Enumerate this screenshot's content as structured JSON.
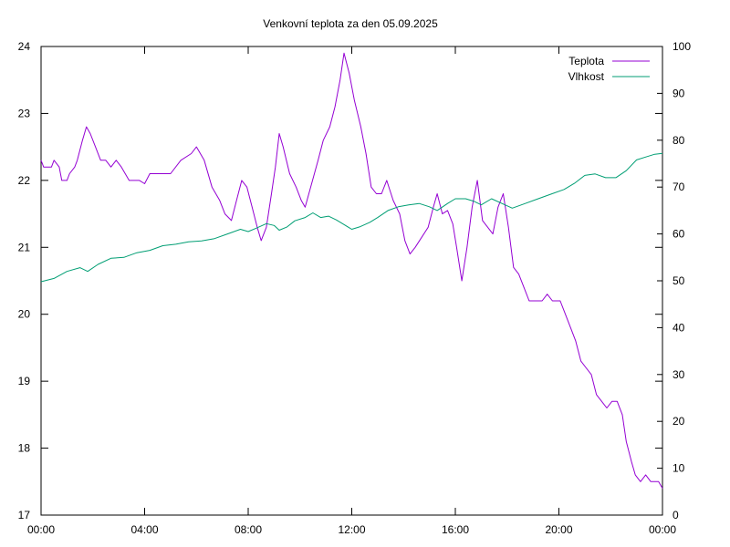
{
  "chart_data": {
    "type": "line",
    "title": "Venkovní teplota za den 05.09.2025",
    "xlabel": "",
    "ylabel": "",
    "y2label": "",
    "x_ticks": [
      "00:00",
      "04:00",
      "08:00",
      "12:00",
      "16:00",
      "20:00",
      "00:00"
    ],
    "xlim_hours": [
      0,
      24
    ],
    "ylim": [
      17,
      24
    ],
    "y_ticks": [
      17,
      18,
      19,
      20,
      21,
      22,
      23,
      24
    ],
    "y2lim": [
      0,
      100
    ],
    "y2_ticks": [
      0,
      10,
      20,
      30,
      40,
      50,
      60,
      70,
      80,
      90,
      100
    ],
    "grid": false,
    "legend_position": "top-right",
    "series": [
      {
        "name": "Teplota",
        "axis": "left",
        "color": "#9400d3",
        "points": [
          [
            0.0,
            22.3
          ],
          [
            0.1,
            22.2
          ],
          [
            0.4,
            22.2
          ],
          [
            0.5,
            22.3
          ],
          [
            0.7,
            22.2
          ],
          [
            0.8,
            22.0
          ],
          [
            1.0,
            22.0
          ],
          [
            1.1,
            22.1
          ],
          [
            1.3,
            22.2
          ],
          [
            1.4,
            22.3
          ],
          [
            1.6,
            22.6
          ],
          [
            1.75,
            22.8
          ],
          [
            1.9,
            22.7
          ],
          [
            2.1,
            22.5
          ],
          [
            2.3,
            22.3
          ],
          [
            2.5,
            22.3
          ],
          [
            2.7,
            22.2
          ],
          [
            2.9,
            22.3
          ],
          [
            3.1,
            22.2
          ],
          [
            3.4,
            22.0
          ],
          [
            3.8,
            22.0
          ],
          [
            4.0,
            21.95
          ],
          [
            4.2,
            22.1
          ],
          [
            4.7,
            22.1
          ],
          [
            5.0,
            22.1
          ],
          [
            5.4,
            22.3
          ],
          [
            5.8,
            22.4
          ],
          [
            6.0,
            22.5
          ],
          [
            6.3,
            22.3
          ],
          [
            6.6,
            21.9
          ],
          [
            6.9,
            21.7
          ],
          [
            7.1,
            21.5
          ],
          [
            7.35,
            21.4
          ],
          [
            7.55,
            21.7
          ],
          [
            7.75,
            22.0
          ],
          [
            7.95,
            21.9
          ],
          [
            8.15,
            21.6
          ],
          [
            8.35,
            21.3
          ],
          [
            8.5,
            21.1
          ],
          [
            8.7,
            21.3
          ],
          [
            8.9,
            21.8
          ],
          [
            9.05,
            22.2
          ],
          [
            9.2,
            22.7
          ],
          [
            9.35,
            22.5
          ],
          [
            9.6,
            22.1
          ],
          [
            9.85,
            21.9
          ],
          [
            10.05,
            21.7
          ],
          [
            10.2,
            21.6
          ],
          [
            10.45,
            21.95
          ],
          [
            10.7,
            22.3
          ],
          [
            10.9,
            22.6
          ],
          [
            11.15,
            22.8
          ],
          [
            11.35,
            23.1
          ],
          [
            11.55,
            23.5
          ],
          [
            11.7,
            23.9
          ],
          [
            11.9,
            23.6
          ],
          [
            12.1,
            23.2
          ],
          [
            12.35,
            22.8
          ],
          [
            12.55,
            22.4
          ],
          [
            12.75,
            21.9
          ],
          [
            12.95,
            21.8
          ],
          [
            13.15,
            21.8
          ],
          [
            13.35,
            22.0
          ],
          [
            13.6,
            21.7
          ],
          [
            13.85,
            21.5
          ],
          [
            14.05,
            21.1
          ],
          [
            14.25,
            20.9
          ],
          [
            14.45,
            21.0
          ],
          [
            14.7,
            21.15
          ],
          [
            14.95,
            21.3
          ],
          [
            15.15,
            21.6
          ],
          [
            15.3,
            21.8
          ],
          [
            15.5,
            21.5
          ],
          [
            15.7,
            21.55
          ],
          [
            15.9,
            21.35
          ],
          [
            16.05,
            21.0
          ],
          [
            16.25,
            20.5
          ],
          [
            16.45,
            21.0
          ],
          [
            16.65,
            21.6
          ],
          [
            16.85,
            22.0
          ],
          [
            17.05,
            21.4
          ],
          [
            17.25,
            21.3
          ],
          [
            17.45,
            21.2
          ],
          [
            17.65,
            21.6
          ],
          [
            17.85,
            21.8
          ],
          [
            18.05,
            21.3
          ],
          [
            18.25,
            20.7
          ],
          [
            18.45,
            20.6
          ],
          [
            18.65,
            20.4
          ],
          [
            18.85,
            20.2
          ],
          [
            19.05,
            20.2
          ],
          [
            19.35,
            20.2
          ],
          [
            19.55,
            20.3
          ],
          [
            19.75,
            20.2
          ],
          [
            20.05,
            20.2
          ],
          [
            20.25,
            20.0
          ],
          [
            20.45,
            19.8
          ],
          [
            20.65,
            19.6
          ],
          [
            20.85,
            19.3
          ],
          [
            21.05,
            19.2
          ],
          [
            21.25,
            19.1
          ],
          [
            21.45,
            18.8
          ],
          [
            21.65,
            18.7
          ],
          [
            21.85,
            18.6
          ],
          [
            22.05,
            18.7
          ],
          [
            22.25,
            18.7
          ],
          [
            22.45,
            18.5
          ],
          [
            22.6,
            18.1
          ],
          [
            22.8,
            17.8
          ],
          [
            22.95,
            17.6
          ],
          [
            23.15,
            17.5
          ],
          [
            23.35,
            17.6
          ],
          [
            23.55,
            17.5
          ],
          [
            23.75,
            17.5
          ],
          [
            23.85,
            17.5
          ],
          [
            24.0,
            17.4
          ]
        ]
      },
      {
        "name": "Vlhkost",
        "axis": "right",
        "color": "#009e73",
        "points": [
          [
            0.0,
            49.8
          ],
          [
            0.5,
            50.5
          ],
          [
            1.0,
            52.0
          ],
          [
            1.5,
            52.8
          ],
          [
            1.8,
            52.0
          ],
          [
            2.2,
            53.5
          ],
          [
            2.7,
            54.8
          ],
          [
            3.2,
            55.0
          ],
          [
            3.7,
            56.0
          ],
          [
            4.2,
            56.5
          ],
          [
            4.7,
            57.5
          ],
          [
            5.2,
            57.8
          ],
          [
            5.7,
            58.3
          ],
          [
            6.2,
            58.5
          ],
          [
            6.7,
            59.0
          ],
          [
            7.2,
            60.0
          ],
          [
            7.7,
            61.0
          ],
          [
            8.0,
            60.5
          ],
          [
            8.3,
            61.2
          ],
          [
            8.7,
            62.2
          ],
          [
            9.0,
            61.8
          ],
          [
            9.2,
            60.8
          ],
          [
            9.5,
            61.5
          ],
          [
            9.8,
            62.8
          ],
          [
            10.2,
            63.5
          ],
          [
            10.5,
            64.5
          ],
          [
            10.8,
            63.5
          ],
          [
            11.1,
            63.8
          ],
          [
            11.4,
            63.0
          ],
          [
            11.7,
            62.0
          ],
          [
            12.0,
            61.0
          ],
          [
            12.3,
            61.5
          ],
          [
            12.7,
            62.5
          ],
          [
            13.0,
            63.5
          ],
          [
            13.4,
            65.0
          ],
          [
            13.8,
            65.8
          ],
          [
            14.2,
            66.2
          ],
          [
            14.6,
            66.5
          ],
          [
            15.0,
            65.8
          ],
          [
            15.3,
            65.0
          ],
          [
            15.7,
            66.5
          ],
          [
            16.0,
            67.5
          ],
          [
            16.4,
            67.5
          ],
          [
            16.7,
            67.0
          ],
          [
            17.0,
            66.2
          ],
          [
            17.4,
            67.5
          ],
          [
            17.8,
            66.5
          ],
          [
            18.2,
            65.5
          ],
          [
            18.7,
            66.5
          ],
          [
            19.2,
            67.5
          ],
          [
            19.7,
            68.5
          ],
          [
            20.2,
            69.5
          ],
          [
            20.6,
            70.8
          ],
          [
            21.0,
            72.5
          ],
          [
            21.4,
            72.8
          ],
          [
            21.8,
            72.0
          ],
          [
            22.2,
            72.0
          ],
          [
            22.6,
            73.5
          ],
          [
            23.0,
            75.8
          ],
          [
            23.4,
            76.5
          ],
          [
            23.7,
            77.0
          ],
          [
            24.0,
            77.2
          ]
        ]
      }
    ]
  }
}
